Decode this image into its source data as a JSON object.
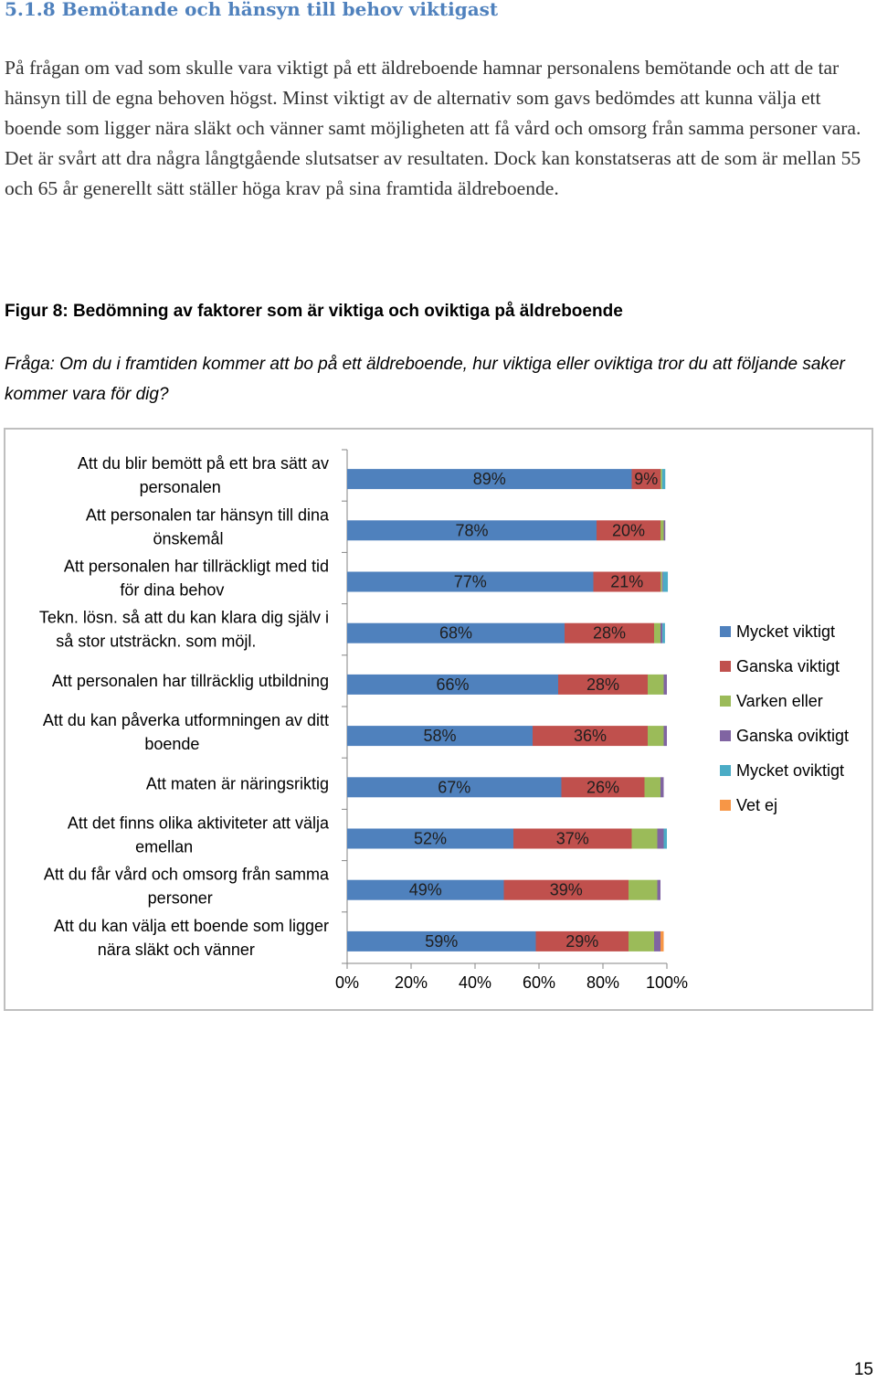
{
  "heading": "5.1.8 Bemötande och hänsyn till behov viktigast",
  "intro_text": "På frågan om vad som skulle vara viktigt på ett äldreboende hamnar personalens bemötande och att de tar hänsyn till de egna behoven högst. Minst viktigt av de alternativ som gavs bedömdes att kunna välja ett boende som ligger nära släkt och vänner samt möjligheten att få vård och omsorg från samma personer vara. Det är svårt att dra några långtgående slutsatser av resultaten. Dock kan konstatseras att de som är mellan 55 och 65 år generellt sätt ställer höga krav på sina framtida äldreboende.",
  "figure_title": "Figur 8: Bedömning av faktorer som är viktiga och oviktiga på äldreboende",
  "question_text": "Fråga: Om du i framtiden kommer att bo på ett äldreboende, hur viktiga eller oviktiga tror du att följande saker kommer vara för dig?",
  "page_number": "15",
  "chart_data": {
    "type": "bar",
    "orientation": "horizontal",
    "stacked": "percent",
    "categories": [
      [
        "Att du blir bemött på ett bra sätt av",
        "personalen"
      ],
      [
        "Att personalen tar hänsyn till dina",
        "önskemål"
      ],
      [
        "Att personalen har tillräckligt med tid",
        "för dina behov"
      ],
      [
        "Tekn. lösn. så att du kan klara dig själv i",
        "så stor utsträckn. som möjl."
      ],
      [
        "Att personalen har tillräcklig utbildning"
      ],
      [
        "Att du kan påverka utformningen av ditt",
        "boende"
      ],
      [
        "Att maten är näringsriktig"
      ],
      [
        "Att det finns olika aktiviteter att välja",
        "emellan"
      ],
      [
        "Att du får vård och omsorg från samma",
        "personer"
      ],
      [
        "Att du kan välja ett boende som ligger",
        "nära släkt och vänner"
      ]
    ],
    "series": [
      {
        "name": "Mycket viktigt",
        "color": "#4f81bd",
        "values": [
          89,
          78,
          77,
          68,
          66,
          58,
          67,
          52,
          49,
          59
        ]
      },
      {
        "name": "Ganska viktigt",
        "color": "#c0504d",
        "values": [
          9,
          20,
          21,
          28,
          28,
          36,
          26,
          37,
          39,
          29
        ]
      },
      {
        "name": "Varken eller",
        "color": "#9bbb59",
        "values": [
          0.5,
          1,
          0.5,
          2,
          5,
          5,
          5,
          8,
          9,
          8
        ]
      },
      {
        "name": "Ganska oviktigt",
        "color": "#8064a2",
        "values": [
          0,
          0.5,
          0.3,
          0.6,
          1,
          1,
          1,
          2,
          1,
          2
        ]
      },
      {
        "name": "Mycket oviktigt",
        "color": "#4bacc6",
        "values": [
          1,
          0,
          1.5,
          0.8,
          0,
          0,
          0,
          1,
          0,
          0
        ]
      },
      {
        "name": "Vet ej",
        "color": "#f79646",
        "values": [
          0,
          0,
          0,
          0,
          0,
          0,
          0,
          0,
          0,
          1
        ]
      }
    ],
    "labels": [
      [
        "89%",
        "9%"
      ],
      [
        "78%",
        "20%"
      ],
      [
        "77%",
        "21%"
      ],
      [
        "68%",
        "28%"
      ],
      [
        "66%",
        "28%"
      ],
      [
        "58%",
        "36%"
      ],
      [
        "67%",
        "26%"
      ],
      [
        "52%",
        "37%"
      ],
      [
        "49%",
        "39%"
      ],
      [
        "59%",
        "29%"
      ]
    ],
    "x_ticks": [
      "0%",
      "20%",
      "40%",
      "60%",
      "80%",
      "100%"
    ],
    "xlim": [
      0,
      100
    ],
    "legend_position": "right"
  }
}
